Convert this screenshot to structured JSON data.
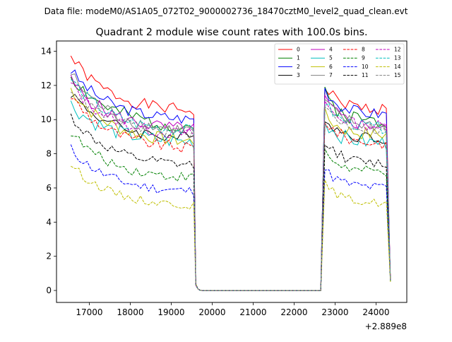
{
  "suptitle": "Data file: modeM0/AS1A05_072T02_9000002736_18470cztM0_level2_quad_clean.evt",
  "chart_data": {
    "type": "line",
    "title": "Quadrant 2 module wise count rates with 100.0s bins.",
    "xlabel": "",
    "ylabel": "",
    "x_offset_label": "+2.889e8",
    "xlim": [
      16200,
      24750
    ],
    "ylim": [
      -0.7,
      14.6
    ],
    "xticks": [
      17000,
      18000,
      19000,
      20000,
      21000,
      22000,
      23000,
      24000
    ],
    "xtick_labels": [
      "17000",
      "18000",
      "19000",
      "20000",
      "21000",
      "22000",
      "23000",
      "24000"
    ],
    "yticks": [
      0,
      2,
      4,
      6,
      8,
      10,
      12,
      14
    ],
    "ytick_labels": [
      "0",
      "2",
      "4",
      "6",
      "8",
      "10",
      "12",
      "14"
    ],
    "legend": {
      "position": "top-right",
      "columns": 4
    },
    "orbit_segments": {
      "seg1_start": 16550,
      "seg1_end": 19550,
      "drop_times": [
        19600,
        19650,
        19700
      ],
      "gap_start": 19750,
      "gap_end": 22650,
      "seg2_start": 22750,
      "seg2_end": 24250,
      "seg2_last": 24350,
      "bin": 100
    },
    "series": [
      {
        "name": "0",
        "color": "#ff0000",
        "dash": "solid",
        "start": 13.7,
        "plateau": 10.4,
        "amp": 0.35,
        "seg2_start": 11.9,
        "seg2_level": 10.6,
        "seed": 1
      },
      {
        "name": "1",
        "color": "#008000",
        "dash": "solid",
        "start": 12.6,
        "plateau": 9.5,
        "amp": 0.45,
        "seg2_start": 11.5,
        "seg2_level": 9.9,
        "seed": 2
      },
      {
        "name": "2",
        "color": "#0000ff",
        "dash": "solid",
        "start": 12.9,
        "plateau": 9.9,
        "amp": 0.35,
        "seg2_start": 11.8,
        "seg2_level": 10.3,
        "seed": 3
      },
      {
        "name": "3",
        "color": "#000000",
        "dash": "solid",
        "start": 11.6,
        "plateau": 8.8,
        "amp": 0.35,
        "seg2_start": 10.1,
        "seg2_level": 8.9,
        "seed": 4
      },
      {
        "name": "4",
        "color": "#bf00bf",
        "dash": "solid",
        "start": 12.3,
        "plateau": 9.3,
        "amp": 0.4,
        "seg2_start": 11.2,
        "seg2_level": 9.6,
        "seed": 5
      },
      {
        "name": "5",
        "color": "#00bfbf",
        "dash": "solid",
        "start": 10.9,
        "plateau": 8.6,
        "amp": 0.45,
        "seg2_start": 9.9,
        "seg2_level": 8.6,
        "seed": 6
      },
      {
        "name": "6",
        "color": "#bfbf00",
        "dash": "solid",
        "start": 11.8,
        "plateau": 8.6,
        "amp": 0.4,
        "seg2_start": 10.3,
        "seg2_level": 9.1,
        "seed": 7
      },
      {
        "name": "7",
        "color": "#808080",
        "dash": "solid",
        "start": 12.7,
        "plateau": 9.2,
        "amp": 0.4,
        "seg2_start": 11.1,
        "seg2_level": 9.6,
        "seed": 8
      },
      {
        "name": "8",
        "color": "#ff0000",
        "dash": "dashed",
        "start": 11.4,
        "plateau": 8.2,
        "amp": 0.35,
        "seg2_start": 10.0,
        "seg2_level": 8.6,
        "seed": 9
      },
      {
        "name": "9",
        "color": "#008000",
        "dash": "dashed",
        "start": 9.3,
        "plateau": 6.5,
        "amp": 0.3,
        "seg2_start": 8.1,
        "seg2_level": 6.9,
        "seed": 10
      },
      {
        "name": "10",
        "color": "#0000ff",
        "dash": "dashed",
        "start": 8.3,
        "plateau": 5.7,
        "amp": 0.3,
        "seg2_start": 7.1,
        "seg2_level": 6.0,
        "seed": 11
      },
      {
        "name": "11",
        "color": "#000000",
        "dash": "dashed",
        "start": 10.2,
        "plateau": 7.2,
        "amp": 0.3,
        "seg2_start": 8.8,
        "seg2_level": 7.4,
        "seed": 12
      },
      {
        "name": "12",
        "color": "#bf00bf",
        "dash": "dashed",
        "start": 12.1,
        "plateau": 9.0,
        "amp": 0.35,
        "seg2_start": 11.0,
        "seg2_level": 9.6,
        "seed": 13
      },
      {
        "name": "13",
        "color": "#00bfbf",
        "dash": "dashed",
        "start": 12.4,
        "plateau": 9.2,
        "amp": 0.35,
        "seg2_start": 11.0,
        "seg2_level": 9.5,
        "seed": 14
      },
      {
        "name": "14",
        "color": "#bfbf00",
        "dash": "dashed",
        "start": 7.4,
        "plateau": 4.9,
        "amp": 0.25,
        "seg2_start": 6.3,
        "seg2_level": 5.1,
        "seed": 15
      },
      {
        "name": "15",
        "color": "#808080",
        "dash": "dashed",
        "start": 11.9,
        "plateau": 9.1,
        "amp": 0.35,
        "seg2_start": 10.8,
        "seg2_level": 9.4,
        "seed": 16
      }
    ]
  }
}
